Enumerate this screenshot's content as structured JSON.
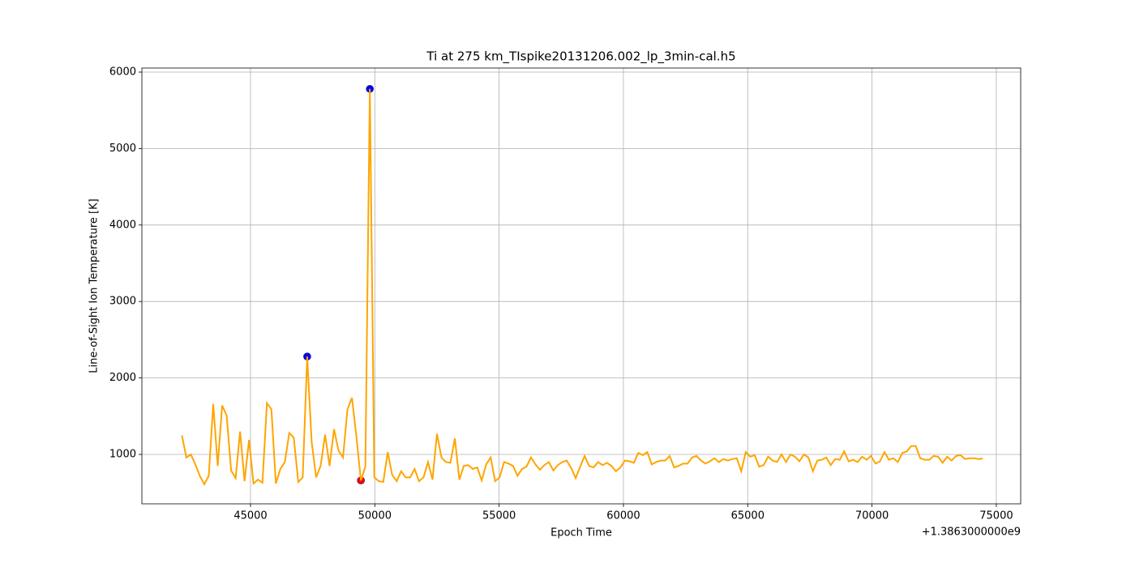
{
  "chart_data": {
    "type": "line",
    "title": "Ti at 275 km_TIspike20131206.002_lp_3min-cal.h5",
    "x_label": "Epoch Time",
    "y_label": "Line-of-Sight Ion Temperature [K]",
    "x_offset_label": "+1.3863000000e9",
    "xlim": [
      40630,
      75980
    ],
    "ylim": [
      354,
      6053
    ],
    "xticks": [
      45000,
      50000,
      55000,
      60000,
      65000,
      70000,
      75000
    ],
    "yticks": [
      1000,
      2000,
      3000,
      4000,
      5000,
      6000
    ],
    "grid": true,
    "series": [
      {
        "color": "orange",
        "x": [
          42240,
          42420,
          42600,
          42780,
          42960,
          43140,
          43320,
          43500,
          43680,
          43860,
          44040,
          44220,
          44400,
          44580,
          44760,
          44940,
          45120,
          45300,
          45480,
          45660,
          45840,
          46020,
          46200,
          46380,
          46560,
          46740,
          46920,
          47100,
          47280,
          47460,
          47640,
          47820,
          48000,
          48180,
          48360,
          48540,
          48720,
          48900,
          49080,
          49260,
          49440,
          49620,
          49800,
          49980,
          50160,
          50340,
          50520,
          50700,
          50880,
          51060,
          51240,
          51420,
          51600,
          51780,
          51960,
          52140,
          52320,
          52500,
          52680,
          52860,
          53040,
          53220,
          53400,
          53580,
          53760,
          53940,
          54120,
          54300,
          54480,
          54660,
          54840,
          55020,
          55200,
          55380,
          55560,
          55740,
          55920,
          56100,
          56280,
          56460,
          56640,
          56820,
          57000,
          57180,
          57360,
          57540,
          57720,
          57900,
          58080,
          58260,
          58440,
          58620,
          58800,
          58980,
          59160,
          59340,
          59520,
          59700,
          59880,
          60060,
          60240,
          60420,
          60600,
          60780,
          60960,
          61140,
          61320,
          61500,
          61680,
          61860,
          62040,
          62220,
          62400,
          62580,
          62760,
          62940,
          63120,
          63300,
          63480,
          63660,
          63840,
          64020,
          64200,
          64380,
          64560,
          64740,
          64920,
          65100,
          65280,
          65460,
          65640,
          65820,
          66000,
          66180,
          66360,
          66540,
          66720,
          66900,
          67080,
          67260,
          67440,
          67620,
          67800,
          67980,
          68160,
          68340,
          68520,
          68700,
          68880,
          69060,
          69240,
          69420,
          69600,
          69780,
          69960,
          70140,
          70320,
          70500,
          70680,
          70860,
          71040,
          71220,
          71400,
          71580,
          71760,
          71940,
          72120,
          72300,
          72480,
          72660,
          72840,
          73020,
          73200,
          73380,
          73560,
          73740,
          73920,
          74100,
          74280,
          74460
        ],
        "values": [
          1250,
          960,
          1000,
          870,
          720,
          610,
          720,
          1660,
          850,
          1640,
          1510,
          790,
          690,
          1300,
          650,
          1190,
          620,
          670,
          630,
          1670,
          1590,
          620,
          810,
          900,
          1280,
          1220,
          640,
          700,
          2280,
          1160,
          700,
          850,
          1260,
          850,
          1330,
          1050,
          960,
          1590,
          1740,
          1230,
          660,
          840,
          5780,
          700,
          650,
          640,
          1030,
          730,
          650,
          780,
          700,
          700,
          810,
          650,
          700,
          900,
          670,
          1270,
          960,
          900,
          890,
          1210,
          670,
          850,
          860,
          810,
          830,
          660,
          870,
          960,
          650,
          700,
          900,
          880,
          850,
          720,
          810,
          840,
          960,
          870,
          800,
          860,
          900,
          790,
          860,
          900,
          920,
          820,
          690,
          840,
          980,
          850,
          830,
          900,
          860,
          890,
          850,
          780,
          830,
          920,
          910,
          890,
          1020,
          990,
          1030,
          870,
          900,
          920,
          920,
          980,
          830,
          850,
          880,
          880,
          960,
          980,
          920,
          880,
          910,
          950,
          900,
          940,
          920,
          940,
          950,
          780,
          1030,
          970,
          990,
          840,
          860,
          970,
          920,
          900,
          1000,
          900,
          1000,
          970,
          910,
          1000,
          960,
          780,
          920,
          930,
          960,
          860,
          940,
          930,
          1040,
          910,
          930,
          900,
          970,
          930,
          980,
          880,
          910,
          1030,
          930,
          950,
          900,
          1020,
          1040,
          1110,
          1110,
          950,
          930,
          930,
          980,
          970,
          890,
          970,
          920,
          980,
          990,
          940,
          950,
          950,
          940,
          945
        ]
      }
    ],
    "markers": [
      {
        "color": "blue",
        "x": [
          47280,
          49800
        ],
        "values": [
          2280,
          5780
        ]
      },
      {
        "color": "red",
        "x": [
          49440
        ],
        "values": [
          660
        ]
      }
    ]
  }
}
